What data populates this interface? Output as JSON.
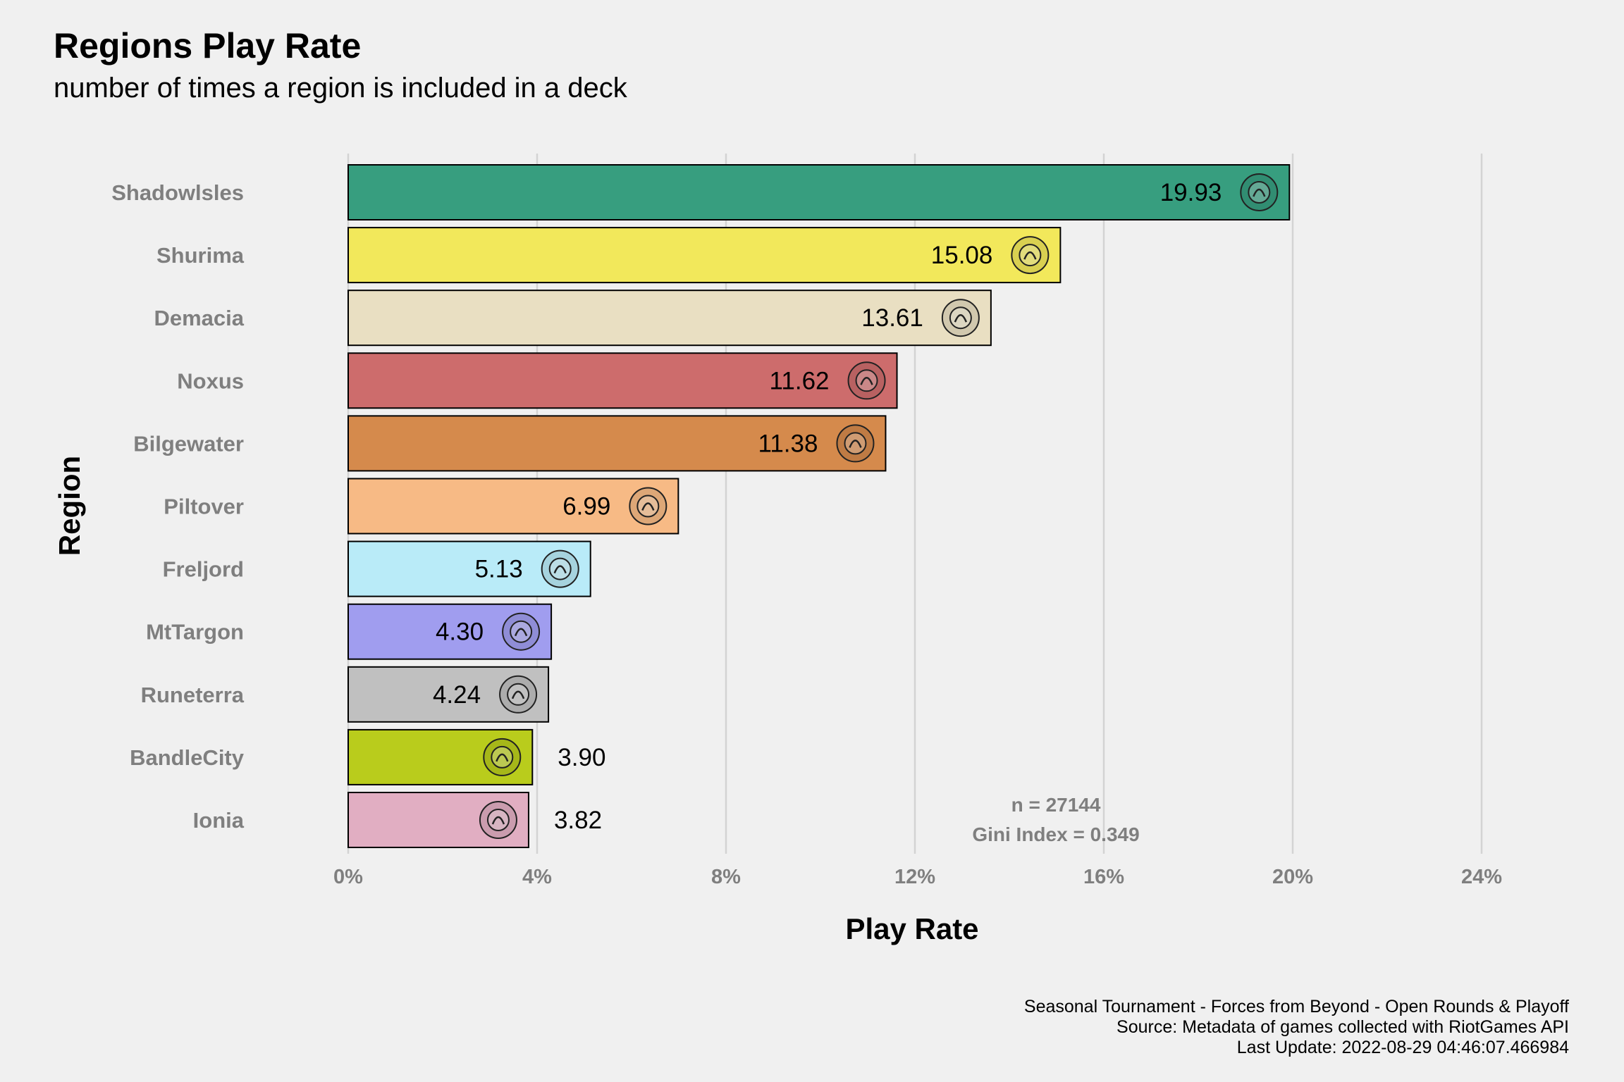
{
  "chart_data": {
    "type": "bar",
    "orientation": "horizontal",
    "title": "Regions Play Rate",
    "subtitle": "number of times a region is included in a deck",
    "xlabel": "Play Rate",
    "ylabel": "Region",
    "xlim": [
      0,
      24
    ],
    "xticks": [
      {
        "value": 0,
        "label": "0%"
      },
      {
        "value": 4,
        "label": "4%"
      },
      {
        "value": 8,
        "label": "8%"
      },
      {
        "value": 12,
        "label": "12%"
      },
      {
        "value": 16,
        "label": "16%"
      },
      {
        "value": 20,
        "label": "20%"
      },
      {
        "value": 24,
        "label": "24%"
      }
    ],
    "grid": "vertical",
    "legend": "none",
    "categories": [
      "Shadowlsles",
      "Shurima",
      "Demacia",
      "Noxus",
      "Bilgewater",
      "Piltover",
      "Freljord",
      "MtTargon",
      "Runeterra",
      "BandleCity",
      "Ionia"
    ],
    "values": [
      19.93,
      15.08,
      13.61,
      11.62,
      11.38,
      6.99,
      5.13,
      4.3,
      4.24,
      3.9,
      3.82
    ],
    "value_labels": [
      "19.93",
      "15.08",
      "13.61",
      "11.62",
      "11.38",
      "6.99",
      "5.13",
      "4.30",
      "4.24",
      "3.90",
      "3.82"
    ],
    "colors": [
      "#379e7f",
      "#f2e85b",
      "#e9dfc2",
      "#cd6c6c",
      "#d58a4c",
      "#f7ba85",
      "#b9ebf8",
      "#a09def",
      "#c0c0c0",
      "#b9cc1c",
      "#e1aec2"
    ],
    "icons": [
      "shadow-isles-icon",
      "shurima-icon",
      "demacia-icon",
      "noxus-icon",
      "bilgewater-icon",
      "piltover-icon",
      "freljord-icon",
      "mt-targon-icon",
      "runeterra-icon",
      "bandle-city-icon",
      "ionia-icon"
    ],
    "annotations": [
      "n = 27144",
      "Gini Index = 0.349"
    ],
    "caption": [
      "Seasonal Tournament - Forces from Beyond - Open Rounds & Playoff",
      "Source: Metadata of games collected with RiotGames API",
      "Last Update: 2022-08-29 04:46:07.466984"
    ]
  }
}
